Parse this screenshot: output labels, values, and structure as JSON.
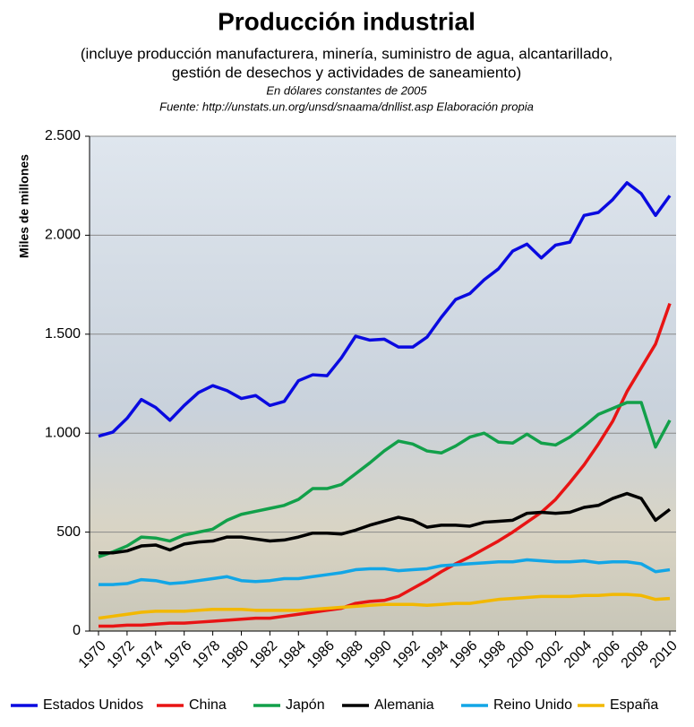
{
  "chart_data": {
    "type": "line",
    "title": "Producción industrial",
    "subtitle": [
      "(incluye producción manufacturera,  minería, suministro de agua, alcantarillado,",
      "gestión de desechos y actividades de saneamiento)"
    ],
    "note": "En dólares constantes de 2005",
    "source": "Fuente: http://unstats.un.org/unsd/snaama/dnllist.asp  Elaboración propia",
    "ylabel": "Miles de millones",
    "x": [
      1970,
      1971,
      1972,
      1973,
      1974,
      1975,
      1976,
      1977,
      1978,
      1979,
      1980,
      1981,
      1982,
      1983,
      1984,
      1985,
      1986,
      1987,
      1988,
      1989,
      1990,
      1991,
      1992,
      1993,
      1994,
      1995,
      1996,
      1997,
      1998,
      1999,
      2000,
      2001,
      2002,
      2003,
      2004,
      2005,
      2006,
      2007,
      2008,
      2009,
      2010
    ],
    "xlim": [
      1970,
      2010
    ],
    "xticks": [
      1970,
      1972,
      1974,
      1976,
      1978,
      1980,
      1982,
      1984,
      1986,
      1988,
      1990,
      1992,
      1994,
      1996,
      1998,
      2000,
      2002,
      2004,
      2006,
      2008,
      2010
    ],
    "ylim": [
      0,
      2500
    ],
    "yticks": [
      0,
      500,
      {
        "value": 1000,
        "label": "1.000"
      },
      {
        "value": 1500,
        "label": "1.500"
      },
      {
        "value": 2000,
        "label": "2.000"
      },
      {
        "value": 2500,
        "label": "2.500"
      }
    ],
    "grid": true,
    "legend": "bottom",
    "series": [
      {
        "name": "Estados Unidos",
        "color": "#0a0ae0",
        "values": [
          985,
          1005,
          1075,
          1170,
          1130,
          1065,
          1140,
          1205,
          1240,
          1215,
          1175,
          1190,
          1140,
          1160,
          1265,
          1295,
          1290,
          1380,
          1490,
          1470,
          1475,
          1435,
          1435,
          1485,
          1585,
          1675,
          1705,
          1775,
          1830,
          1920,
          1955,
          1885,
          1950,
          1965,
          2100,
          2115,
          2180,
          2265,
          2210,
          2100,
          2200
        ]
      },
      {
        "name": "China",
        "color": "#e81414",
        "values": [
          25,
          25,
          30,
          30,
          35,
          40,
          40,
          45,
          50,
          55,
          60,
          65,
          65,
          75,
          85,
          95,
          105,
          115,
          140,
          150,
          155,
          175,
          215,
          255,
          300,
          340,
          375,
          415,
          455,
          500,
          550,
          600,
          665,
          750,
          840,
          945,
          1060,
          1210,
          1330,
          1450,
          1655
        ]
      },
      {
        "name": "Japón",
        "color": "#12a04a",
        "values": [
          375,
          400,
          430,
          475,
          470,
          455,
          485,
          500,
          515,
          560,
          590,
          605,
          620,
          635,
          665,
          720,
          720,
          740,
          795,
          850,
          910,
          960,
          945,
          910,
          900,
          935,
          980,
          1000,
          955,
          950,
          995,
          950,
          940,
          980,
          1035,
          1095,
          1125,
          1155,
          1155,
          930,
          1065
        ]
      },
      {
        "name": "Alemania",
        "color": "#000000",
        "values": [
          395,
          395,
          405,
          430,
          435,
          410,
          440,
          450,
          455,
          475,
          475,
          465,
          455,
          460,
          475,
          495,
          495,
          490,
          510,
          535,
          555,
          575,
          560,
          525,
          535,
          535,
          530,
          550,
          555,
          560,
          595,
          600,
          595,
          600,
          625,
          635,
          670,
          695,
          670,
          560,
          615
        ]
      },
      {
        "name": "Reino Unido",
        "color": "#12a6e6",
        "values": [
          235,
          235,
          240,
          260,
          255,
          240,
          245,
          255,
          265,
          275,
          255,
          250,
          255,
          265,
          265,
          275,
          285,
          295,
          310,
          315,
          315,
          305,
          310,
          315,
          330,
          335,
          340,
          345,
          350,
          350,
          360,
          355,
          350,
          350,
          355,
          345,
          350,
          350,
          340,
          300,
          310
        ]
      },
      {
        "name": "España",
        "color": "#f2b800",
        "values": [
          65,
          75,
          85,
          95,
          100,
          100,
          100,
          105,
          110,
          110,
          110,
          105,
          105,
          105,
          105,
          110,
          115,
          120,
          125,
          130,
          135,
          135,
          135,
          130,
          135,
          140,
          140,
          150,
          160,
          165,
          170,
          175,
          175,
          175,
          180,
          180,
          185,
          185,
          180,
          160,
          165
        ]
      }
    ]
  }
}
